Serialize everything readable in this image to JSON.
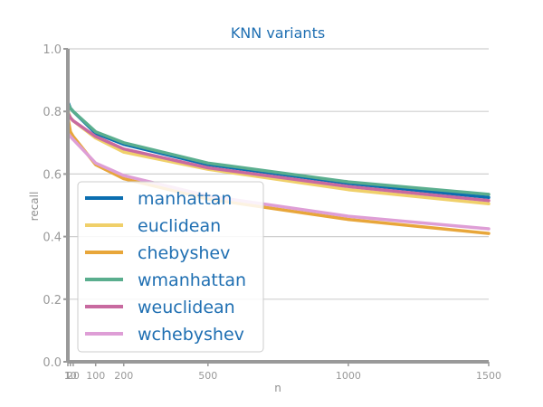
{
  "chart_data": {
    "type": "line",
    "title": "KNN variants",
    "xlabel": "n",
    "ylabel": "recall",
    "x": [
      1,
      10,
      20,
      100,
      200,
      500,
      1000,
      1500
    ],
    "xticks": [
      1,
      10,
      20,
      100,
      200,
      500,
      1000,
      1500
    ],
    "xtick_labels": [
      "1",
      "10",
      "20",
      "100",
      "200",
      "500",
      "1000",
      "1500"
    ],
    "xlim": [
      1,
      1500
    ],
    "ylim": [
      0.0,
      1.0
    ],
    "yticks": [
      0.0,
      0.2,
      0.4,
      0.6,
      0.8,
      1.0
    ],
    "ytick_labels": [
      "0.0",
      "0.2",
      "0.4",
      "0.6",
      "0.8",
      "1.0"
    ],
    "grid": "horizontal",
    "legend": "lower-left",
    "series": [
      {
        "name": "manhattan",
        "color": "#0b6eb0",
        "values": [
          0.83,
          0.81,
          0.8,
          0.73,
          0.695,
          0.63,
          0.57,
          0.525
        ]
      },
      {
        "name": "euclidean",
        "color": "#f0d06a",
        "values": [
          0.8,
          0.78,
          0.77,
          0.715,
          0.67,
          0.615,
          0.55,
          0.505
        ]
      },
      {
        "name": "chebyshev",
        "color": "#e8a63a",
        "values": [
          0.78,
          0.735,
          0.72,
          0.63,
          0.585,
          0.52,
          0.455,
          0.41
        ]
      },
      {
        "name": "wmanhattan",
        "color": "#5aae8e",
        "values": [
          0.825,
          0.81,
          0.8,
          0.735,
          0.7,
          0.635,
          0.575,
          0.535
        ]
      },
      {
        "name": "weuclidean",
        "color": "#c86aa0",
        "values": [
          0.795,
          0.78,
          0.77,
          0.72,
          0.68,
          0.62,
          0.56,
          0.515
        ]
      },
      {
        "name": "wchebyshev",
        "color": "#de9ed6",
        "values": [
          0.73,
          0.72,
          0.71,
          0.635,
          0.595,
          0.53,
          0.465,
          0.425
        ]
      }
    ]
  }
}
